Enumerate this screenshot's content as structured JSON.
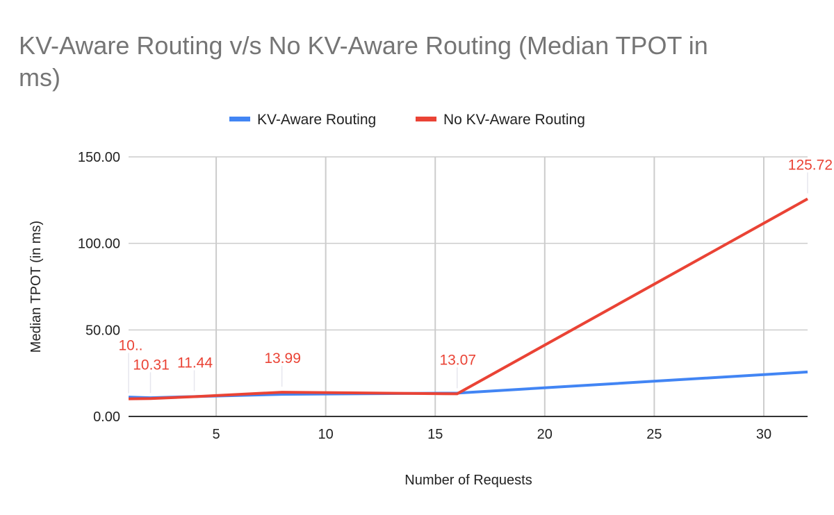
{
  "chart_data": {
    "type": "line",
    "title": "KV-Aware Routing v/s No KV-Aware Routing (Median TPOT in ms)",
    "title_lines": [
      "KV-Aware Routing v/s No KV-Aware Routing (Median TPOT in",
      "ms)"
    ],
    "xlabel": "Number of Requests",
    "ylabel": "Median TPOT (in ms)",
    "xlim": [
      1,
      32
    ],
    "ylim": [
      0,
      150
    ],
    "xticks": [
      5,
      10,
      15,
      20,
      25,
      30
    ],
    "yticks": [
      0,
      50,
      100,
      150
    ],
    "ytick_labels": [
      "0.00",
      "50.00",
      "100.00",
      "150.00"
    ],
    "grid": true,
    "legend_position": "top",
    "x": [
      1,
      2,
      4,
      8,
      16,
      32
    ],
    "series": [
      {
        "name": "KV-Aware Routing",
        "color": "#4285f4",
        "values": [
          11.2,
          10.8,
          11.5,
          12.8,
          13.5,
          25.7
        ]
      },
      {
        "name": "No KV-Aware Routing",
        "color": "#ea4335",
        "values": [
          10.2,
          10.31,
          11.44,
          13.99,
          13.07,
          125.72
        ],
        "data_labels": [
          "10..",
          "10.31",
          "11.44",
          "13.99",
          "13.07",
          "125.72"
        ]
      }
    ]
  }
}
